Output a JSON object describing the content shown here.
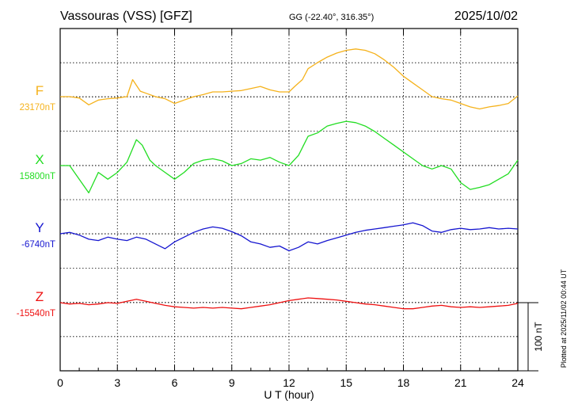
{
  "chart_data": {
    "type": "line",
    "title": "Vassouras (VSS)  [GFZ]",
    "coords": "GG (-22.40°, 316.35°)",
    "date": "2025/10/02",
    "xlabel": "U T (hour)",
    "xlim": [
      0,
      24
    ],
    "xticks": [
      0,
      3,
      6,
      9,
      12,
      15,
      18,
      21,
      24
    ],
    "scale_label": "100 nT",
    "scale_nT": 100,
    "plotted_note": "Plotted at 2025/11/02 00:44 UT",
    "grid": true,
    "series": [
      {
        "name": "F",
        "baseline_label": "23170nT",
        "baseline": 23170,
        "color": "#f5b21b",
        "x": [
          0,
          0.5,
          1,
          1.5,
          2,
          2.5,
          3,
          3.5,
          3.8,
          4.2,
          4.5,
          5,
          5.5,
          6,
          6.5,
          7,
          7.5,
          8,
          8.5,
          9,
          9.5,
          10,
          10.5,
          11,
          11.5,
          12,
          12.3,
          12.7,
          13,
          13.5,
          14,
          14.5,
          15,
          15.5,
          16,
          16.5,
          17,
          17.5,
          18,
          18.5,
          19,
          19.5,
          20,
          20.5,
          21,
          21.5,
          22,
          22.5,
          23,
          23.5,
          24
        ],
        "values": [
          23170,
          23170,
          23168,
          23158,
          23165,
          23167,
          23168,
          23170,
          23195,
          23178,
          23175,
          23170,
          23167,
          23160,
          23165,
          23170,
          23173,
          23177,
          23177,
          23178,
          23179,
          23182,
          23185,
          23180,
          23177,
          23177,
          23185,
          23195,
          23211,
          23220,
          23228,
          23234,
          23238,
          23240,
          23238,
          23233,
          23224,
          23213,
          23200,
          23190,
          23180,
          23170,
          23167,
          23165,
          23160,
          23155,
          23152,
          23155,
          23157,
          23160,
          23171
        ]
      },
      {
        "name": "X",
        "baseline_label": "15800nT",
        "baseline": 15800,
        "color": "#22dd22",
        "x": [
          0,
          0.5,
          1,
          1.5,
          2,
          2.5,
          3,
          3.5,
          4,
          4.3,
          4.7,
          5,
          5.5,
          6,
          6.5,
          7,
          7.5,
          8,
          8.5,
          9,
          9.5,
          10,
          10.5,
          11,
          11.5,
          12,
          12.5,
          13,
          13.5,
          14,
          14.5,
          15,
          15.5,
          16,
          16.5,
          17,
          17.5,
          18,
          18.5,
          19,
          19.5,
          20,
          20.5,
          21,
          21.5,
          22,
          22.5,
          23,
          23.5,
          24
        ],
        "values": [
          15800,
          15800,
          15780,
          15760,
          15790,
          15780,
          15790,
          15805,
          15838,
          15830,
          15808,
          15800,
          15790,
          15780,
          15790,
          15803,
          15808,
          15810,
          15807,
          15800,
          15803,
          15810,
          15808,
          15812,
          15805,
          15800,
          15815,
          15843,
          15848,
          15858,
          15862,
          15865,
          15863,
          15858,
          15850,
          15840,
          15830,
          15820,
          15810,
          15800,
          15795,
          15800,
          15795,
          15775,
          15765,
          15768,
          15772,
          15780,
          15788,
          15808
        ]
      },
      {
        "name": "Y",
        "baseline_label": "-6740nT",
        "baseline": -6740,
        "color": "#1616d0",
        "x": [
          0,
          0.5,
          1,
          1.5,
          2,
          2.5,
          3,
          3.5,
          4,
          4.5,
          5,
          5.5,
          6,
          6.5,
          7,
          7.5,
          8,
          8.5,
          9,
          9.5,
          10,
          10.5,
          11,
          11.5,
          12,
          12.5,
          13,
          13.5,
          14,
          14.5,
          15,
          15.5,
          16,
          16.5,
          17,
          17.5,
          18,
          18.5,
          19,
          19.5,
          20,
          20.5,
          21,
          21.5,
          22,
          22.5,
          23,
          23.5,
          24
        ],
        "values": [
          -6740,
          -6738,
          -6742,
          -6748,
          -6750,
          -6745,
          -6748,
          -6750,
          -6745,
          -6748,
          -6755,
          -6762,
          -6752,
          -6745,
          -6738,
          -6733,
          -6730,
          -6732,
          -6737,
          -6743,
          -6752,
          -6755,
          -6760,
          -6758,
          -6765,
          -6760,
          -6752,
          -6755,
          -6750,
          -6746,
          -6742,
          -6738,
          -6735,
          -6733,
          -6731,
          -6729,
          -6727,
          -6724,
          -6728,
          -6736,
          -6738,
          -6734,
          -6732,
          -6734,
          -6733,
          -6731,
          -6733,
          -6732,
          -6733
        ]
      },
      {
        "name": "Z",
        "baseline_label": "-15540nT",
        "baseline": -15540,
        "color": "#ee1111",
        "x": [
          0,
          0.5,
          1,
          1.5,
          2,
          2.5,
          3,
          3.5,
          4,
          4.5,
          5,
          5.5,
          6,
          6.5,
          7,
          7.5,
          8,
          8.5,
          9,
          9.5,
          10,
          10.5,
          11,
          11.5,
          12,
          12.5,
          13,
          13.5,
          14,
          14.5,
          15,
          15.5,
          16,
          16.5,
          17,
          17.5,
          18,
          18.5,
          19,
          19.5,
          20,
          20.5,
          21,
          21.5,
          22,
          22.5,
          23,
          23.5,
          24
        ],
        "values": [
          -15540,
          -15542,
          -15541,
          -15543,
          -15542,
          -15540,
          -15541,
          -15538,
          -15535,
          -15538,
          -15541,
          -15544,
          -15546,
          -15547,
          -15548,
          -15547,
          -15548,
          -15547,
          -15548,
          -15549,
          -15547,
          -15545,
          -15543,
          -15540,
          -15537,
          -15535,
          -15533,
          -15534,
          -15535,
          -15536,
          -15538,
          -15540,
          -15542,
          -15543,
          -15545,
          -15547,
          -15549,
          -15549,
          -15547,
          -15545,
          -15544,
          -15546,
          -15547,
          -15546,
          -15547,
          -15546,
          -15545,
          -15544,
          -15541
        ]
      }
    ]
  }
}
